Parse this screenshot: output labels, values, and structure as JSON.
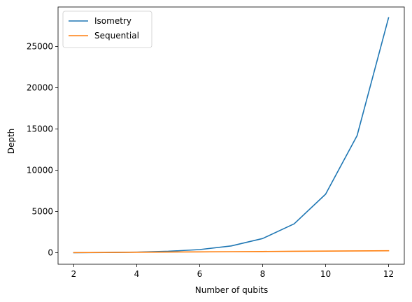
{
  "chart_data": {
    "type": "line",
    "title": "",
    "xlabel": "Number of qubits",
    "ylabel": "Depth",
    "xlim": [
      1.5,
      12.5
    ],
    "ylim": [
      -1400,
      29800
    ],
    "xticks": [
      2,
      4,
      6,
      8,
      10,
      12
    ],
    "yticks": [
      0,
      5000,
      10000,
      15000,
      20000,
      25000
    ],
    "x": [
      2,
      3,
      4,
      5,
      6,
      7,
      8,
      9,
      10,
      11,
      12
    ],
    "series": [
      {
        "name": "Isometry",
        "color": "#1f77b4",
        "values": [
          4,
          25,
          70,
          170,
          380,
          820,
          1720,
          3500,
          7100,
          14200,
          28500
        ]
      },
      {
        "name": "Sequential",
        "color": "#ff7f0e",
        "values": [
          10,
          30,
          55,
          80,
          100,
          125,
          145,
          170,
          195,
          215,
          240
        ]
      }
    ],
    "legend_position": "top-left",
    "grid": false
  }
}
